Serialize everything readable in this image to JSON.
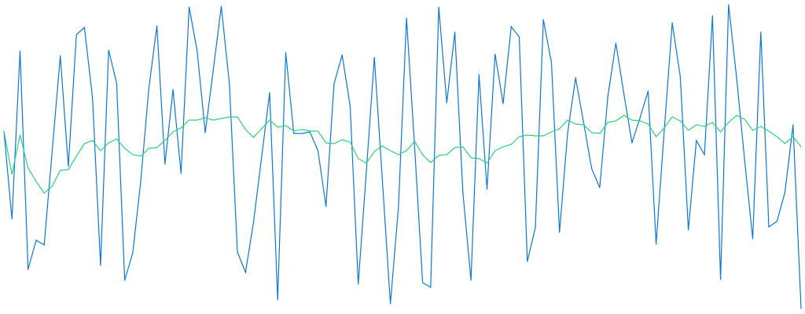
{
  "chart_data": {
    "type": "line",
    "title": "",
    "xlabel": "",
    "ylabel": "",
    "axes_visible": false,
    "grid": false,
    "legend": "none",
    "xlim": [
      0,
      99
    ],
    "ylim": [
      0,
      400
    ],
    "x": "index 0..99",
    "series": [
      {
        "color": "#0a78dc",
        "values": [
          233,
          121,
          335,
          57,
          94,
          88,
          209,
          329,
          188,
          356,
          365,
          275,
          62,
          336,
          294,
          43,
          78,
          170,
          288,
          367,
          191,
          286,
          179,
          391,
          335,
          231,
          311,
          392,
          293,
          79,
          53,
          117,
          200,
          282,
          18,
          333,
          230,
          230,
          232,
          208,
          137,
          293,
          330,
          265,
          38,
          180,
          327,
          170,
          13,
          137,
          377,
          213,
          40,
          34,
          391,
          269,
          359,
          155,
          43,
          305,
          159,
          331,
          268,
          366,
          353,
          67,
          110,
          375,
          320,
          104,
          230,
          301,
          243,
          185,
          161,
          277,
          345,
          280,
          218,
          250,
          284,
          89,
          233,
          371,
          302,
          107,
          221,
          203,
          380,
          44,
          394,
          300,
          195,
          96,
          359,
          111,
          118,
          155,
          241,
          7
        ]
      },
      {
        "color": "#2ed47a",
        "values": [
          233,
          178,
          228,
          186,
          169,
          154,
          163,
          183,
          184,
          201,
          217,
          221,
          208,
          218,
          223,
          211,
          203,
          201,
          211,
          212,
          221,
          232,
          237,
          247,
          247,
          250,
          247,
          249,
          251,
          251,
          235,
          225,
          236,
          247,
          238,
          240,
          233,
          235,
          233,
          233,
          218,
          217,
          222,
          219,
          198,
          192,
          207,
          214,
          208,
          203,
          208,
          220,
          203,
          193,
          202,
          203,
          212,
          213,
          199,
          198,
          192,
          208,
          213,
          216,
          226,
          228,
          227,
          227,
          232,
          236,
          247,
          242,
          241,
          231,
          230,
          244,
          246,
          253,
          247,
          246,
          242,
          226,
          237,
          251,
          246,
          234,
          241,
          239,
          244,
          232,
          244,
          253,
          248,
          234,
          239,
          233,
          226,
          217,
          226,
          213
        ]
      }
    ]
  }
}
